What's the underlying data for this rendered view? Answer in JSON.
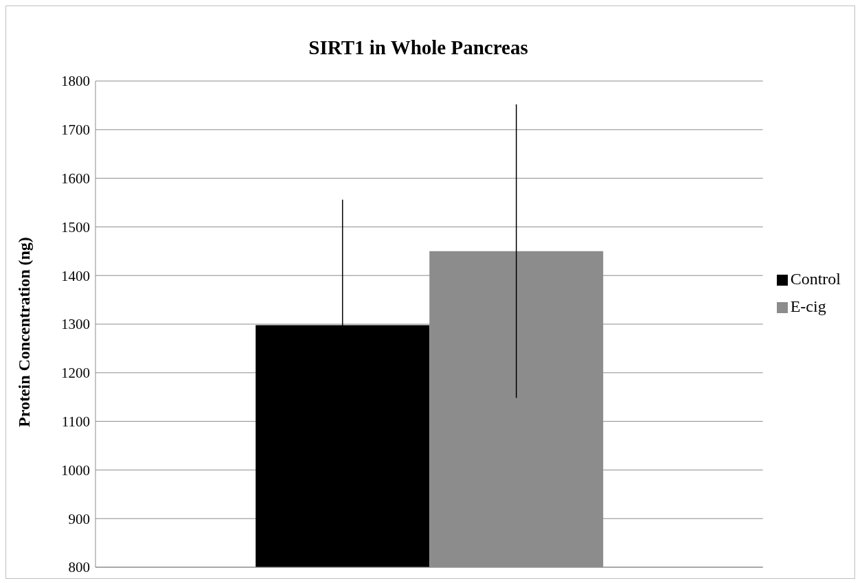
{
  "chart_data": {
    "type": "bar",
    "title": "SIRT1 in Whole Pancreas",
    "ylabel": "Protein Concentration (ng)",
    "categories": [
      null
    ],
    "series": [
      {
        "name": "Control",
        "color": "#000000",
        "values": [
          1298
        ],
        "errors": [
          258
        ]
      },
      {
        "name": "E-cig",
        "color": "#8c8c8c",
        "values": [
          1450
        ],
        "errors": [
          302
        ]
      }
    ],
    "ylim": [
      800,
      1800
    ],
    "yticks": [
      800,
      900,
      1000,
      1100,
      1200,
      1300,
      1400,
      1500,
      1600,
      1700,
      1800
    ],
    "grid": "y",
    "legend": "right"
  }
}
